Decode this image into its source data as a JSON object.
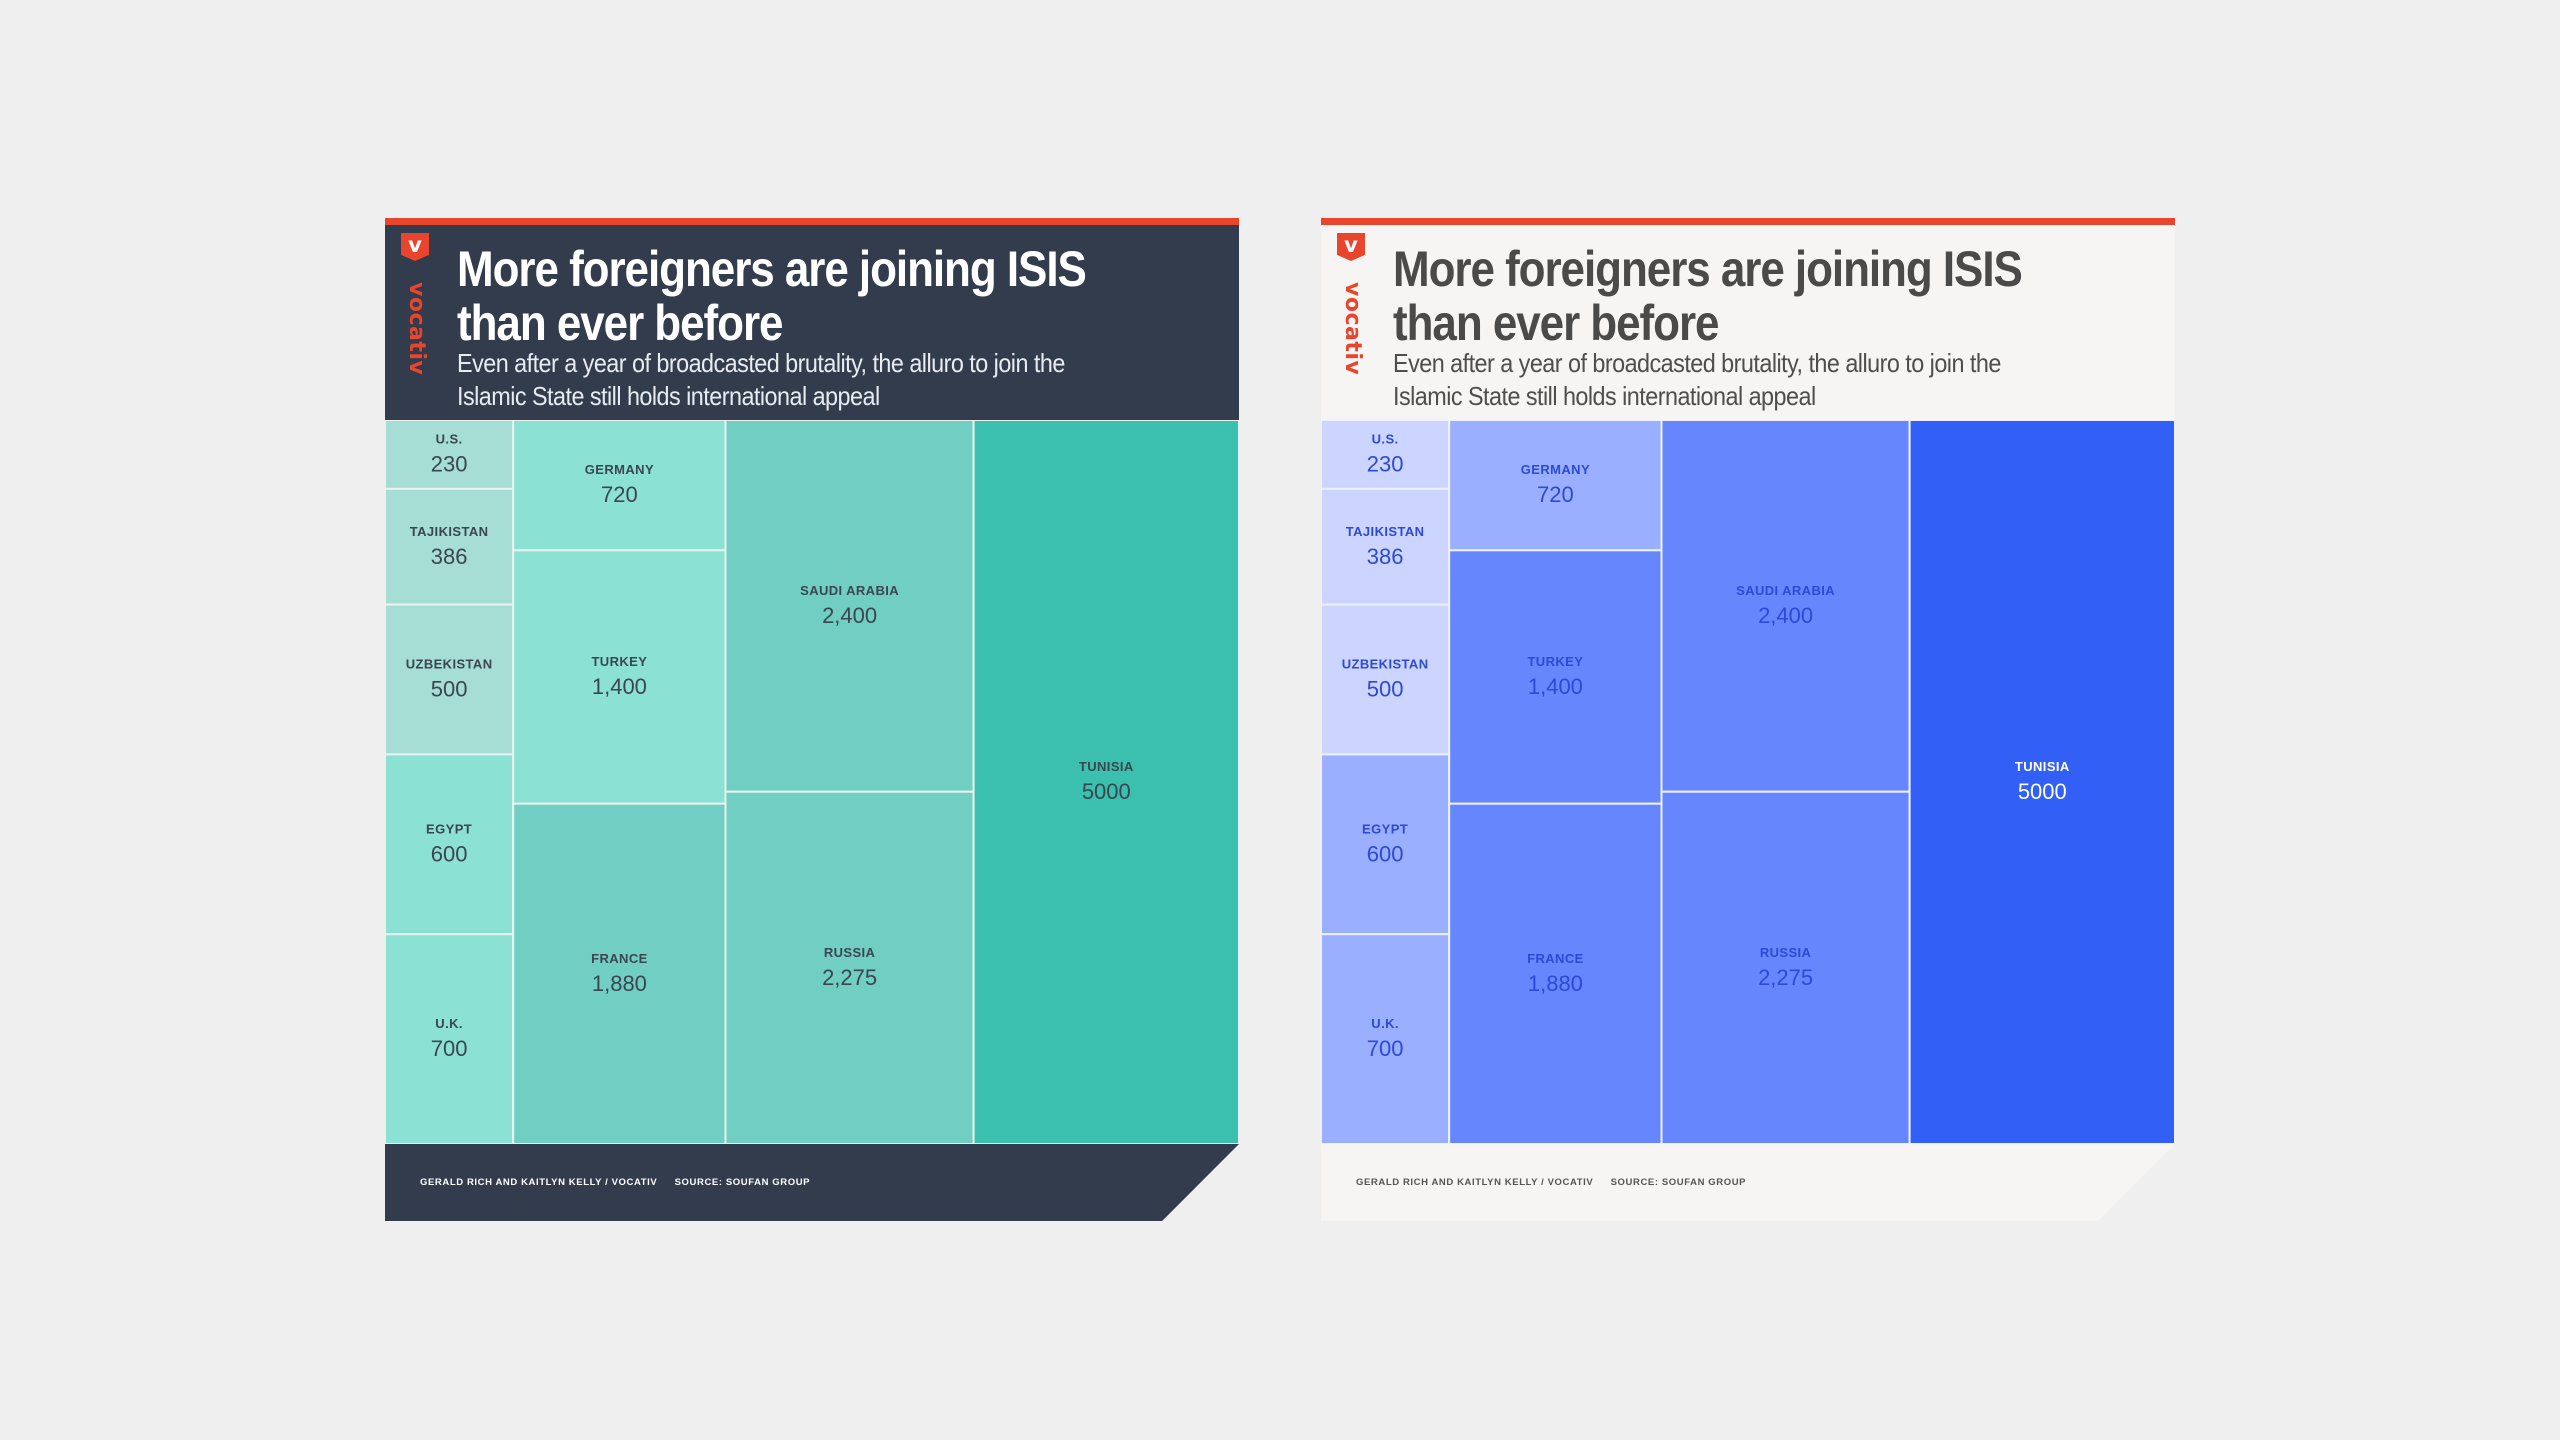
{
  "brand": {
    "logo_letter": "v",
    "logo_word": "vocativ",
    "accent": "#e8452c"
  },
  "cards": [
    {
      "variant": "dark",
      "title_line1": "More foreigners are joining ISIS",
      "title_line2": "than ever before",
      "subtitle_line1": "Even after a year of broadcasted brutality, the alluro to join the",
      "subtitle_line2": "Islamic State still holds international appeal",
      "credit": "GERALD RICH AND KAITLYN KELLY / VOCATIV",
      "source": "SOURCE: SOUFAN GROUP",
      "colors": {
        "header": "#323c4c",
        "label": "#3b4650",
        "border": "#e8f3f1"
      }
    },
    {
      "variant": "light",
      "title_line1": "More foreigners are joining ISIS",
      "title_line2": "than ever before",
      "subtitle_line1": "Even after a year of broadcasted brutality, the alluro to join the",
      "subtitle_line2": "Islamic State still holds international appeal",
      "credit": "GERALD RICH AND KAITLYN KELLY / VOCATIV",
      "source": "SOURCE: SOUFAN GROUP",
      "colors": {
        "header": "#f6f5f3",
        "label": "#2e49d6",
        "border": "#eef1fb"
      }
    }
  ],
  "chart_data": [
    {
      "type": "treemap",
      "palette": "teal",
      "items": [
        {
          "name": "U.S.",
          "value": 230,
          "display": "230",
          "color": "#a6ddd4"
        },
        {
          "name": "TAJIKISTAN",
          "value": 386,
          "display": "386",
          "color": "#a6ddd4"
        },
        {
          "name": "UZBEKISTAN",
          "value": 500,
          "display": "500",
          "color": "#a6ddd4"
        },
        {
          "name": "EGYPT",
          "value": 600,
          "display": "600",
          "color": "#8ce2d2"
        },
        {
          "name": "U.K.",
          "value": 700,
          "display": "700",
          "color": "#8ce2d2"
        },
        {
          "name": "GERMANY",
          "value": 720,
          "display": "720",
          "color": "#8ce2d2"
        },
        {
          "name": "TURKEY",
          "value": 1400,
          "display": "1,400",
          "color": "#8ce2d2"
        },
        {
          "name": "FRANCE",
          "value": 1880,
          "display": "1,880",
          "color": "#70cec2"
        },
        {
          "name": "SAUDI ARABIA",
          "value": 2400,
          "display": "2,400",
          "color": "#70cec2"
        },
        {
          "name": "RUSSIA",
          "value": 2275,
          "display": "2,275",
          "color": "#70cec2"
        },
        {
          "name": "TUNISIA",
          "value": 5000,
          "display": "5000",
          "color": "#3bbfae"
        }
      ]
    },
    {
      "type": "treemap",
      "palette": "blue",
      "items": [
        {
          "name": "U.S.",
          "value": 230,
          "display": "230",
          "color": "#cbd5ff"
        },
        {
          "name": "TAJIKISTAN",
          "value": 386,
          "display": "386",
          "color": "#cbd5ff"
        },
        {
          "name": "UZBEKISTAN",
          "value": 500,
          "display": "500",
          "color": "#cbd5ff"
        },
        {
          "name": "EGYPT",
          "value": 600,
          "display": "600",
          "color": "#9aafff"
        },
        {
          "name": "U.K.",
          "value": 700,
          "display": "700",
          "color": "#9aafff"
        },
        {
          "name": "GERMANY",
          "value": 720,
          "display": "720",
          "color": "#9aafff"
        },
        {
          "name": "TURKEY",
          "value": 1400,
          "display": "1,400",
          "color": "#6686fd"
        },
        {
          "name": "FRANCE",
          "value": 1880,
          "display": "1,880",
          "color": "#6686fd"
        },
        {
          "name": "SAUDI ARABIA",
          "value": 2400,
          "display": "2,400",
          "color": "#6686fd"
        },
        {
          "name": "RUSSIA",
          "value": 2275,
          "display": "2,275",
          "color": "#6686fd"
        },
        {
          "name": "TUNISIA",
          "value": 5000,
          "display": "5000",
          "color": "#325ff5",
          "label_color": "#ffffff"
        }
      ]
    }
  ]
}
